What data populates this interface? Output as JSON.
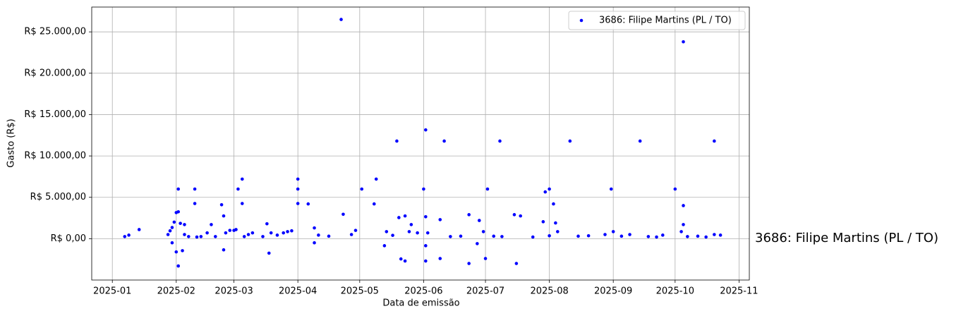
{
  "chart_data": {
    "type": "scatter",
    "xlabel": "Data de emissão",
    "ylabel": "Gasto (R$)",
    "annotation": "3686: Filipe Martins (PL / TO)",
    "legend": "upper right",
    "grid": true,
    "xlim": [
      "2024-12-22",
      "2025-11-06"
    ],
    "ylim": [
      -5000,
      28000
    ],
    "xticks": [
      {
        "value": "2025-01-01",
        "label": "2025-01"
      },
      {
        "value": "2025-02-01",
        "label": "2025-02"
      },
      {
        "value": "2025-03-01",
        "label": "2025-03"
      },
      {
        "value": "2025-04-01",
        "label": "2025-04"
      },
      {
        "value": "2025-05-01",
        "label": "2025-05"
      },
      {
        "value": "2025-06-01",
        "label": "2025-06"
      },
      {
        "value": "2025-07-01",
        "label": "2025-07"
      },
      {
        "value": "2025-08-01",
        "label": "2025-08"
      },
      {
        "value": "2025-09-01",
        "label": "2025-09"
      },
      {
        "value": "2025-10-01",
        "label": "2025-10"
      },
      {
        "value": "2025-11-01",
        "label": "2025-11"
      }
    ],
    "yticks": [
      {
        "value": 0,
        "label": "R$ 0,00"
      },
      {
        "value": 5000,
        "label": "R$ 5.000,00"
      },
      {
        "value": 10000,
        "label": "R$ 10.000,00"
      },
      {
        "value": 15000,
        "label": "R$ 15.000,00"
      },
      {
        "value": 20000,
        "label": "R$ 20.000,00"
      },
      {
        "value": 25000,
        "label": "R$ 25.000,00"
      }
    ],
    "x": [
      "2025-01-07",
      "2025-01-09",
      "2025-01-14",
      "2025-01-28",
      "2025-01-29",
      "2025-01-30",
      "2025-01-30",
      "2025-01-31",
      "2025-02-01",
      "2025-02-01",
      "2025-02-02",
      "2025-02-02",
      "2025-02-02",
      "2025-02-03",
      "2025-02-04",
      "2025-02-05",
      "2025-02-05",
      "2025-02-07",
      "2025-02-10",
      "2025-02-10",
      "2025-02-11",
      "2025-02-13",
      "2025-02-16",
      "2025-02-18",
      "2025-02-20",
      "2025-02-23",
      "2025-02-24",
      "2025-02-24",
      "2025-02-25",
      "2025-02-27",
      "2025-03-01",
      "2025-03-02",
      "2025-03-03",
      "2025-03-05",
      "2025-03-05",
      "2025-03-06",
      "2025-03-08",
      "2025-03-10",
      "2025-03-15",
      "2025-03-17",
      "2025-03-18",
      "2025-03-19",
      "2025-03-22",
      "2025-03-25",
      "2025-03-27",
      "2025-03-29",
      "2025-04-01",
      "2025-04-01",
      "2025-04-01",
      "2025-04-06",
      "2025-04-09",
      "2025-04-09",
      "2025-04-11",
      "2025-04-16",
      "2025-04-22",
      "2025-04-23",
      "2025-04-27",
      "2025-04-29",
      "2025-05-02",
      "2025-05-08",
      "2025-05-09",
      "2025-05-13",
      "2025-05-14",
      "2025-05-17",
      "2025-05-19",
      "2025-05-20",
      "2025-05-21",
      "2025-05-23",
      "2025-05-23",
      "2025-05-25",
      "2025-05-26",
      "2025-05-29",
      "2025-06-01",
      "2025-06-02",
      "2025-06-02",
      "2025-06-02",
      "2025-06-02",
      "2025-06-03",
      "2025-06-09",
      "2025-06-09",
      "2025-06-11",
      "2025-06-14",
      "2025-06-19",
      "2025-06-23",
      "2025-06-23",
      "2025-06-27",
      "2025-06-28",
      "2025-06-30",
      "2025-07-01",
      "2025-07-02",
      "2025-07-05",
      "2025-07-08",
      "2025-07-09",
      "2025-07-15",
      "2025-07-16",
      "2025-07-18",
      "2025-07-24",
      "2025-07-29",
      "2025-07-30",
      "2025-08-01",
      "2025-08-01",
      "2025-08-03",
      "2025-08-04",
      "2025-08-05",
      "2025-08-11",
      "2025-08-15",
      "2025-08-20",
      "2025-08-28",
      "2025-08-31",
      "2025-09-01",
      "2025-09-05",
      "2025-09-09",
      "2025-09-14",
      "2025-09-18",
      "2025-09-22",
      "2025-09-25",
      "2025-10-01",
      "2025-10-04",
      "2025-10-05",
      "2025-10-05",
      "2025-10-05",
      "2025-10-07",
      "2025-10-12",
      "2025-10-16",
      "2025-10-20",
      "2025-10-20",
      "2025-10-23"
    ],
    "series": [
      {
        "name": "3686: Filipe Martins (PL / TO)",
        "color": "#0000ff",
        "values": [
          250,
          430,
          1100,
          500,
          950,
          -500,
          1350,
          2000,
          -1600,
          3150,
          3250,
          -3300,
          6000,
          1850,
          -1450,
          1700,
          500,
          250,
          6000,
          4250,
          200,
          250,
          700,
          1700,
          250,
          4100,
          2750,
          -1350,
          700,
          1000,
          1000,
          1100,
          6000,
          7200,
          4250,
          250,
          500,
          700,
          250,
          1800,
          -1750,
          700,
          430,
          700,
          850,
          950,
          7200,
          6000,
          4250,
          4200,
          1300,
          -500,
          430,
          300,
          26500,
          2950,
          500,
          1000,
          6000,
          4200,
          7200,
          -850,
          850,
          400,
          11800,
          2550,
          -2450,
          2750,
          -2700,
          850,
          1700,
          700,
          6000,
          13150,
          2650,
          -850,
          -2700,
          700,
          2300,
          -2400,
          11800,
          250,
          300,
          2900,
          -3000,
          -600,
          2200,
          850,
          -2400,
          6000,
          300,
          11800,
          250,
          2900,
          -3000,
          2750,
          200,
          2050,
          5650,
          6000,
          350,
          4200,
          1900,
          850,
          11800,
          300,
          350,
          500,
          6000,
          850,
          300,
          500,
          11800,
          250,
          200,
          430,
          6000,
          850,
          23800,
          4000,
          1700,
          250,
          300,
          200,
          11800,
          500,
          430
        ]
      }
    ]
  }
}
